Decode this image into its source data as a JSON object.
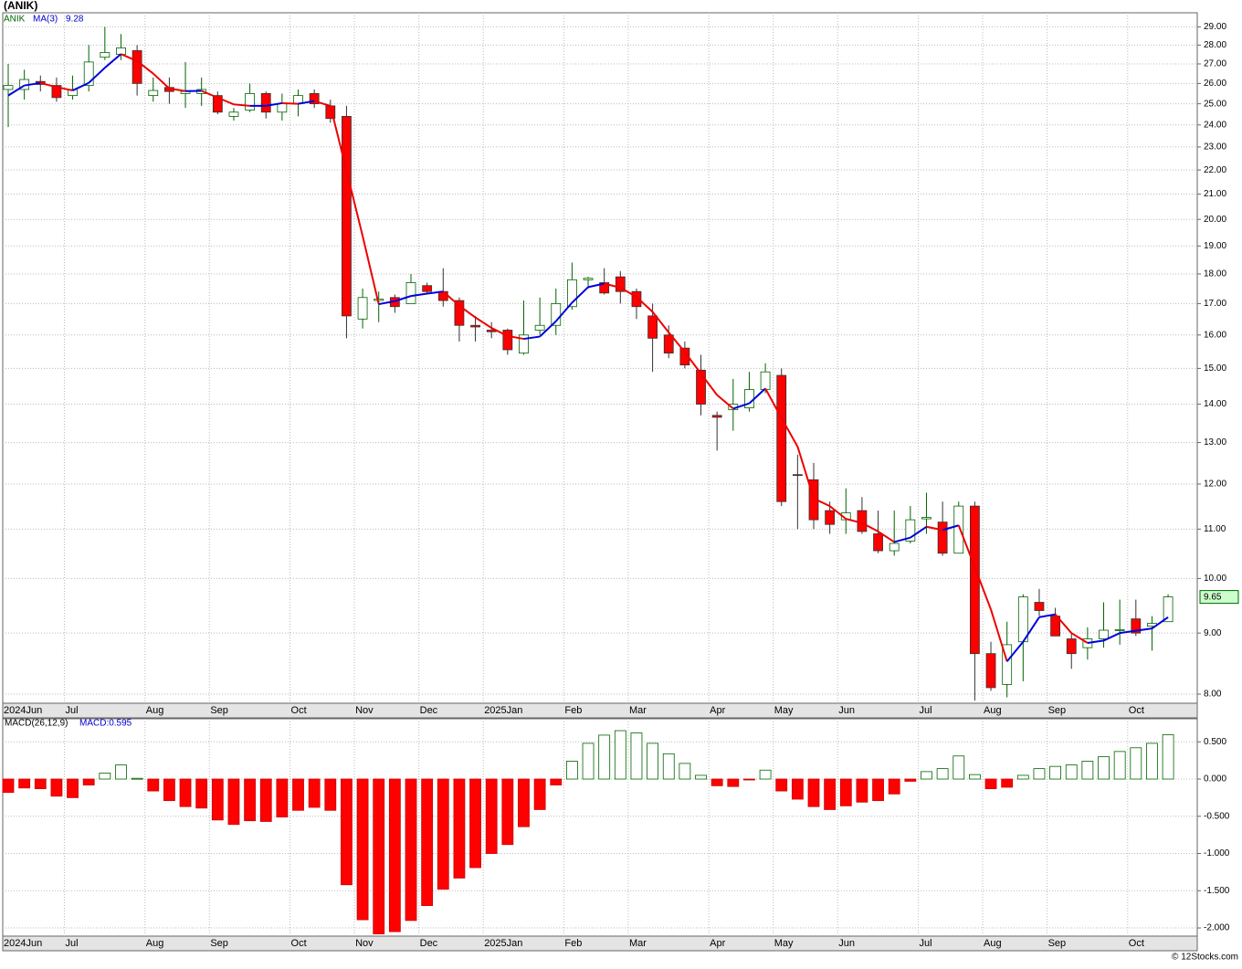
{
  "title": "(ANIK)",
  "footer": "© 12Stocks.com",
  "chart_data": [
    {
      "type": "candlestick",
      "symbol": "ANIK",
      "log_scale": true,
      "grid": true,
      "up_color": "#006400",
      "down_color": "#ff0000",
      "categories": [
        "2024Jun",
        null,
        null,
        null,
        "Jul",
        null,
        null,
        null,
        null,
        "Aug",
        null,
        null,
        null,
        "Sep",
        null,
        null,
        null,
        null,
        "Oct",
        null,
        null,
        null,
        "Nov",
        null,
        null,
        null,
        "Dec",
        null,
        null,
        null,
        "2025Jan",
        null,
        null,
        null,
        null,
        "Feb",
        null,
        null,
        null,
        "Mar",
        null,
        null,
        null,
        null,
        "Apr",
        null,
        null,
        null,
        "May",
        null,
        null,
        null,
        "Jun",
        null,
        null,
        null,
        null,
        "Jul",
        null,
        null,
        null,
        "Aug",
        null,
        null,
        null,
        "Sep",
        null,
        null,
        null,
        null,
        "Oct",
        null,
        null
      ],
      "open": [
        25.7,
        25.7,
        26.1,
        25.9,
        25.4,
        25.9,
        27.35,
        27.5,
        27.7,
        25.4,
        25.8,
        25.5,
        25.5,
        25.4,
        24.4,
        24.7,
        25.5,
        24.6,
        25.0,
        25.5,
        24.9,
        24.4,
        16.5,
        17.1,
        17.2,
        17.0,
        17.6,
        17.4,
        17.1,
        16.3,
        16.15,
        16.15,
        15.45,
        16.15,
        16.3,
        16.9,
        17.8,
        17.7,
        17.9,
        17.4,
        16.6,
        16.0,
        15.6,
        14.95,
        13.7,
        13.85,
        13.9,
        14.4,
        14.8,
        12.22,
        12.1,
        11.4,
        11.2,
        11.4,
        10.9,
        10.55,
        10.75,
        11.22,
        11.15,
        10.5,
        11.5,
        8.65,
        8.15,
        8.85,
        9.55,
        9.3,
        8.9,
        8.75,
        8.9,
        9.05,
        9.25,
        9.12,
        9.2
      ],
      "high": [
        27.0,
        26.7,
        26.4,
        26.3,
        26.4,
        28.0,
        29.0,
        28.6,
        28.0,
        26.3,
        26.3,
        27.1,
        26.3,
        25.6,
        24.8,
        26.0,
        25.6,
        25.5,
        25.7,
        25.7,
        25.2,
        24.9,
        17.5,
        17.4,
        17.3,
        18.0,
        17.7,
        18.2,
        17.2,
        16.6,
        16.4,
        16.2,
        17.1,
        17.2,
        17.5,
        18.4,
        17.9,
        18.2,
        18.1,
        17.5,
        17.0,
        16.3,
        15.8,
        15.4,
        13.8,
        14.7,
        14.9,
        15.15,
        15.0,
        12.7,
        12.5,
        11.6,
        11.9,
        11.7,
        11.4,
        11.4,
        11.5,
        11.8,
        11.6,
        11.6,
        11.6,
        8.85,
        9.2,
        9.7,
        9.8,
        9.45,
        9.0,
        9.1,
        9.55,
        9.6,
        9.6,
        9.3,
        9.7
      ],
      "low": [
        23.9,
        25.2,
        25.6,
        25.1,
        25.2,
        25.6,
        27.2,
        27.2,
        25.4,
        25.1,
        25.0,
        24.8,
        24.9,
        24.5,
        24.2,
        24.6,
        24.3,
        24.2,
        24.4,
        24.8,
        24.1,
        15.9,
        16.2,
        16.4,
        16.7,
        17.0,
        17.3,
        16.9,
        15.8,
        15.8,
        15.9,
        15.4,
        15.4,
        16.0,
        16.0,
        16.8,
        17.5,
        17.3,
        17.0,
        16.5,
        14.9,
        15.3,
        15.0,
        13.7,
        12.8,
        13.3,
        13.8,
        14.3,
        11.5,
        11.0,
        11.0,
        10.9,
        10.9,
        10.9,
        10.5,
        10.45,
        10.7,
        10.9,
        10.45,
        10.5,
        7.9,
        8.05,
        7.95,
        8.2,
        9.3,
        8.95,
        8.4,
        8.55,
        8.75,
        8.8,
        8.95,
        8.7,
        9.2
      ],
      "close": [
        25.9,
        26.2,
        25.95,
        25.3,
        25.7,
        27.1,
        27.6,
        27.85,
        26.0,
        25.65,
        25.6,
        25.6,
        25.7,
        24.6,
        24.6,
        25.5,
        24.6,
        25.0,
        25.4,
        25.0,
        24.3,
        16.6,
        17.2,
        17.15,
        16.9,
        17.7,
        17.4,
        17.1,
        16.3,
        16.25,
        16.1,
        15.55,
        16.0,
        16.3,
        17.0,
        17.8,
        17.85,
        17.35,
        17.4,
        16.9,
        15.9,
        15.45,
        15.1,
        14.0,
        13.65,
        14.0,
        14.4,
        14.9,
        11.6,
        12.2,
        11.2,
        11.1,
        11.35,
        10.95,
        10.55,
        10.7,
        11.2,
        11.25,
        10.5,
        11.5,
        8.65,
        8.1,
        8.8,
        9.65,
        9.4,
        8.95,
        8.65,
        8.9,
        9.05,
        9.06,
        9.0,
        9.17,
        9.65
      ],
      "ma": {
        "name": "MA(3)",
        "up_color": "#0000dd",
        "down_color": "#ee0000",
        "values": [
          25.4,
          25.9,
          26.02,
          25.82,
          25.65,
          26.03,
          26.8,
          27.52,
          27.15,
          26.5,
          25.75,
          25.62,
          25.63,
          25.3,
          24.97,
          24.9,
          24.9,
          25.03,
          25.0,
          25.13,
          24.9,
          21.97,
          19.37,
          16.98,
          17.08,
          17.25,
          17.33,
          17.4,
          16.93,
          16.55,
          16.22,
          15.97,
          15.88,
          15.95,
          16.43,
          17.03,
          17.55,
          17.67,
          17.53,
          17.22,
          16.73,
          16.08,
          15.48,
          14.85,
          14.25,
          13.88,
          14.02,
          14.43,
          13.63,
          12.9,
          11.67,
          11.5,
          11.22,
          11.13,
          10.95,
          10.73,
          10.82,
          11.05,
          10.98,
          11.08,
          10.22,
          9.42,
          8.52,
          8.85,
          9.28,
          9.33,
          9.0,
          8.83,
          8.87,
          9.0,
          9.04,
          9.08,
          9.28
        ]
      },
      "ylim": [
        7.86,
        29.8
      ],
      "yticks": [
        {
          "value": 8,
          "label": "8.00"
        },
        {
          "value": 9,
          "label": "9.00"
        },
        {
          "value": 10,
          "label": "10.00"
        },
        {
          "value": 11,
          "label": "11.00"
        },
        {
          "value": 12,
          "label": "12.00"
        },
        {
          "value": 13,
          "label": "13.00"
        },
        {
          "value": 14,
          "label": "14.00"
        },
        {
          "value": 15,
          "label": "15.00"
        },
        {
          "value": 16,
          "label": "16.00"
        },
        {
          "value": 17,
          "label": "17.00"
        },
        {
          "value": 18,
          "label": "18.00"
        },
        {
          "value": 19,
          "label": "19.00"
        },
        {
          "value": 20,
          "label": "20.00"
        },
        {
          "value": 21,
          "label": "21.00"
        },
        {
          "value": 22,
          "label": "22.00"
        },
        {
          "value": 23,
          "label": "23.00"
        },
        {
          "value": 24,
          "label": "24.00"
        },
        {
          "value": 25,
          "label": "25.00"
        },
        {
          "value": 26,
          "label": "26.00"
        },
        {
          "value": 27,
          "label": "27.00"
        },
        {
          "value": 28,
          "label": "28.00"
        },
        {
          "value": 29,
          "label": "29.00"
        }
      ]
    },
    {
      "type": "bar",
      "name": "MACD(26,12,9)",
      "last_label": "MACD:0.595",
      "grid": true,
      "up_color": "#006400",
      "down_color": "#ff0000",
      "values": [
        -0.18,
        -0.12,
        -0.13,
        -0.23,
        -0.25,
        -0.08,
        0.08,
        0.19,
        0.01,
        -0.16,
        -0.29,
        -0.37,
        -0.39,
        -0.55,
        -0.61,
        -0.56,
        -0.57,
        -0.51,
        -0.42,
        -0.38,
        -0.42,
        -1.42,
        -1.89,
        -2.08,
        -2.05,
        -1.9,
        -1.7,
        -1.48,
        -1.33,
        -1.19,
        -1.0,
        -0.88,
        -0.64,
        -0.41,
        -0.08,
        0.24,
        0.48,
        0.59,
        0.65,
        0.62,
        0.48,
        0.34,
        0.21,
        0.05,
        -0.09,
        -0.1,
        -0.01,
        0.12,
        -0.16,
        -0.27,
        -0.37,
        -0.41,
        -0.36,
        -0.31,
        -0.29,
        -0.2,
        -0.03,
        0.1,
        0.14,
        0.31,
        0.06,
        -0.13,
        -0.11,
        0.05,
        0.14,
        0.17,
        0.19,
        0.24,
        0.3,
        0.37,
        0.42,
        0.48,
        0.595
      ],
      "ylim": [
        -2.11,
        0.81
      ],
      "yticks": [
        {
          "value": 0.5,
          "label": "0.500"
        },
        {
          "value": 0,
          "label": "0.000"
        },
        {
          "value": -0.5,
          "label": "-0.500"
        },
        {
          "value": -1,
          "label": "-1.000"
        },
        {
          "value": -1.5,
          "label": "-1.500"
        },
        {
          "value": -2,
          "label": "-2.000"
        }
      ]
    }
  ]
}
